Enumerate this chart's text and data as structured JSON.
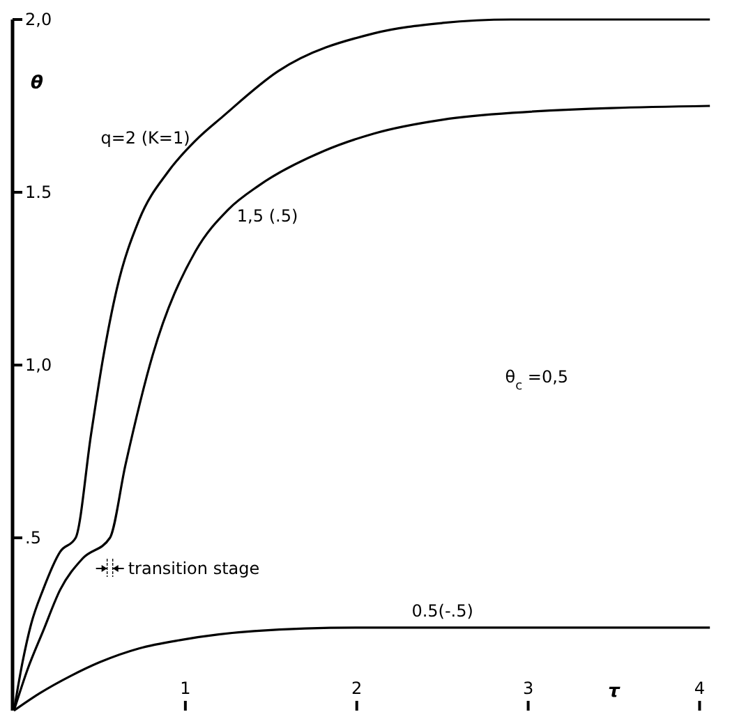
{
  "chart_data": {
    "type": "line",
    "ylabel": "θ",
    "xlabel": "τ",
    "xlim": [
      0,
      4.1
    ],
    "ylim": [
      0,
      2.0
    ],
    "xticks": [
      1,
      2,
      3,
      4
    ],
    "yticks": [
      {
        "value": 0.5,
        "label": ".5"
      },
      {
        "value": 1.0,
        "label": "1,0"
      },
      {
        "value": 1.5,
        "label": "1.5"
      },
      {
        "value": 2.0,
        "label": "2,0"
      }
    ],
    "grid": false,
    "marker": "none",
    "line_style": "solid",
    "tick_labels": "xy",
    "series": [
      {
        "color": "#000000",
        "x": [
          0,
          0.05,
          0.1,
          0.17,
          0.27,
          0.36,
          0.45,
          0.52,
          0.6,
          0.73,
          0.9,
          1.06,
          1.22,
          1.54,
          2.1,
          2.5,
          2.9,
          4.06
        ],
        "values": [
          0,
          0.14,
          0.25,
          0.35,
          0.46,
          0.5,
          0.8,
          1.02,
          1.22,
          1.42,
          1.56,
          1.65,
          1.72,
          1.85,
          1.96,
          1.99,
          2.0,
          2.0
        ]
      },
      {
        "color": "#000000",
        "x": [
          0,
          0.08,
          0.17,
          0.27,
          0.4,
          0.56,
          0.65,
          0.81,
          1.06,
          1.25,
          1.43,
          1.81,
          2.1,
          2.5,
          2.91,
          4.06
        ],
        "values": [
          0,
          0.12,
          0.23,
          0.35,
          0.44,
          0.5,
          0.71,
          1.03,
          1.33,
          1.45,
          1.52,
          1.62,
          1.67,
          1.71,
          1.73,
          1.75
        ]
      },
      {
        "color": "#000000",
        "x": [
          0,
          0.15,
          0.33,
          0.5,
          0.73,
          0.98,
          1.4,
          2,
          3,
          4.06
        ],
        "values": [
          0,
          0.05,
          0.1,
          0.14,
          0.18,
          0.205,
          0.23,
          0.24,
          0.24,
          0.24
        ]
      }
    ],
    "annotations": [
      {
        "text": "q=2 (K=1)",
        "x": 1.06,
        "y": 1.65
      },
      {
        "text": "1,5 (.5)",
        "x": 1.43,
        "y": 1.52
      },
      {
        "text": "0.5(-.5)",
        "x": 2.5,
        "y": 0.24
      },
      {
        "text": "transition stage",
        "x": 0.56,
        "y": 0.5
      },
      "θ$_{c}$ =0,5"
    ]
  }
}
